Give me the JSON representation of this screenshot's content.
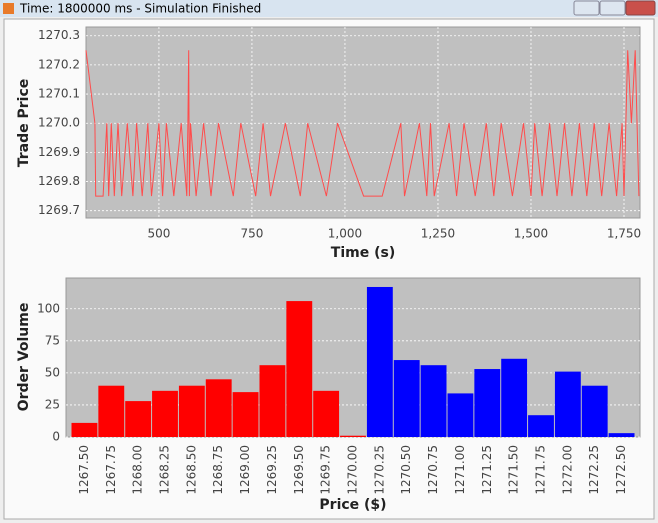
{
  "window": {
    "title": "Time: 1800000 ms - Simulation Finished"
  },
  "chart_data": [
    {
      "type": "line",
      "x_label": "Time (s)",
      "y_label": "Trade Price",
      "color": "#ff4c4c",
      "grid": true,
      "xlim": [
        304,
        1793
      ],
      "ylim": [
        1269.675,
        1270.33
      ],
      "xticks": [
        500,
        750,
        {
          "value": 1000,
          "label": "1,000"
        },
        {
          "value": 1250,
          "label": "1,250"
        },
        {
          "value": 1500,
          "label": "1,500"
        },
        {
          "value": 1750,
          "label": "1,750"
        }
      ],
      "yticks": [
        1269.7,
        1269.8,
        1269.9,
        {
          "value": 1270,
          "label": "1270.0"
        },
        1270.1,
        1270.2,
        1270.3
      ],
      "x": [
        304,
        328,
        330,
        350,
        360,
        365,
        372,
        380,
        390,
        400,
        415,
        430,
        440,
        455,
        470,
        480,
        500,
        510,
        520,
        540,
        560,
        575,
        578,
        580,
        582,
        585,
        600,
        620,
        640,
        660,
        700,
        720,
        760,
        780,
        800,
        840,
        880,
        900,
        950,
        980,
        1050,
        1100,
        1150,
        1160,
        1200,
        1220,
        1230,
        1240,
        1280,
        1300,
        1320,
        1350,
        1380,
        1400,
        1420,
        1450,
        1480,
        1500,
        1510,
        1530,
        1550,
        1570,
        1590,
        1610,
        1630,
        1650,
        1670,
        1690,
        1710,
        1730,
        1745,
        1750,
        1760,
        1770,
        1780,
        1790
      ],
      "values": [
        1270.25,
        1270.0,
        1269.75,
        1269.75,
        1270.0,
        1269.75,
        1270.0,
        1269.75,
        1270.0,
        1269.75,
        1270.0,
        1269.75,
        1270.0,
        1269.75,
        1270.0,
        1269.75,
        1270.0,
        1269.75,
        1270.0,
        1269.75,
        1270.0,
        1269.75,
        1270.0,
        1270.25,
        1269.75,
        1270.0,
        1269.75,
        1270.0,
        1269.75,
        1270.0,
        1269.75,
        1270.0,
        1269.75,
        1270.0,
        1269.75,
        1270.0,
        1269.75,
        1270.0,
        1269.75,
        1270.0,
        1269.75,
        1269.75,
        1270.0,
        1269.75,
        1270.0,
        1269.75,
        1270.0,
        1269.75,
        1270.0,
        1269.75,
        1270.0,
        1269.75,
        1270.0,
        1269.75,
        1270.0,
        1269.75,
        1270.0,
        1269.75,
        1270.0,
        1269.75,
        1270.0,
        1269.75,
        1270.0,
        1269.75,
        1270.0,
        1269.75,
        1270.0,
        1269.75,
        1270.0,
        1269.75,
        1270.0,
        1269.75,
        1270.25,
        1270.0,
        1270.25,
        1269.75
      ]
    },
    {
      "type": "bar",
      "x_label": "Price ($)",
      "y_label": "Order Volume",
      "grid": true,
      "ylim": [
        0,
        124
      ],
      "yticks": [
        0,
        25,
        50,
        75,
        100
      ],
      "categories": [
        "1267.50",
        "1267.75",
        "1268.00",
        "1268.25",
        "1268.50",
        "1268.75",
        "1269.00",
        "1269.25",
        "1269.50",
        "1269.75",
        "1270.00",
        "1270.25",
        "1270.50",
        "1270.75",
        "1271.00",
        "1271.25",
        "1271.50",
        "1271.75",
        "1272.00",
        "1272.25",
        "1272.50"
      ],
      "values": [
        11,
        40,
        28,
        36,
        40,
        45,
        35,
        56,
        106,
        36,
        1,
        117,
        60,
        56,
        34,
        53,
        61,
        17,
        51,
        40,
        3
      ],
      "colors": [
        "#ff0000",
        "#ff0000",
        "#ff0000",
        "#ff0000",
        "#ff0000",
        "#ff0000",
        "#ff0000",
        "#ff0000",
        "#ff0000",
        "#ff0000",
        "#ff0000",
        "#0000ff",
        "#0000ff",
        "#0000ff",
        "#0000ff",
        "#0000ff",
        "#0000ff",
        "#0000ff",
        "#0000ff",
        "#0000ff",
        "#0000ff"
      ]
    }
  ]
}
